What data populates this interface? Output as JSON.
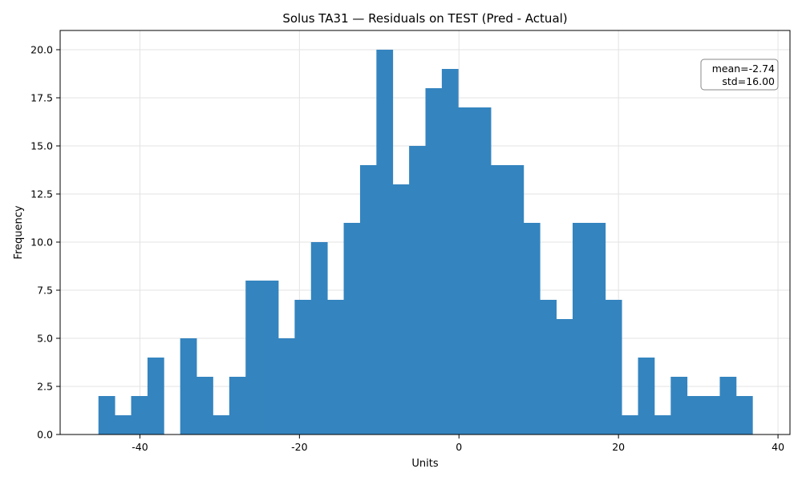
{
  "chart_data": {
    "type": "bar",
    "title": "Solus TA31 — Residuals on TEST (Pred - Actual)",
    "xlabel": "Units",
    "ylabel": "Frequency",
    "xlim": [
      -50,
      41.5
    ],
    "ylim": [
      0,
      21
    ],
    "xticks": [
      -40,
      -20,
      0,
      20,
      40
    ],
    "xtick_labels": [
      "-40",
      "-20",
      "0",
      "20",
      "40"
    ],
    "yticks": [
      0,
      2.5,
      5,
      7.5,
      10,
      12.5,
      15,
      17.5,
      20
    ],
    "ytick_labels": [
      "0.0",
      "2.5",
      "5.0",
      "7.5",
      "10.0",
      "12.5",
      "15.0",
      "17.5",
      "20.0"
    ],
    "grid": true,
    "bar_color": "#3484bf",
    "bin_start": -45.2,
    "bin_width": 2.05,
    "values": [
      2,
      1,
      2,
      4,
      0,
      5,
      3,
      1,
      3,
      8,
      8,
      5,
      7,
      10,
      7,
      11,
      14,
      20,
      13,
      15,
      18,
      19,
      17,
      17,
      14,
      14,
      11,
      7,
      6,
      11,
      11,
      7,
      1,
      4,
      1,
      3,
      2,
      2,
      3,
      2
    ],
    "annotation": {
      "lines": [
        "mean=-2.74",
        "std=16.00"
      ],
      "placement": "top-right"
    }
  }
}
